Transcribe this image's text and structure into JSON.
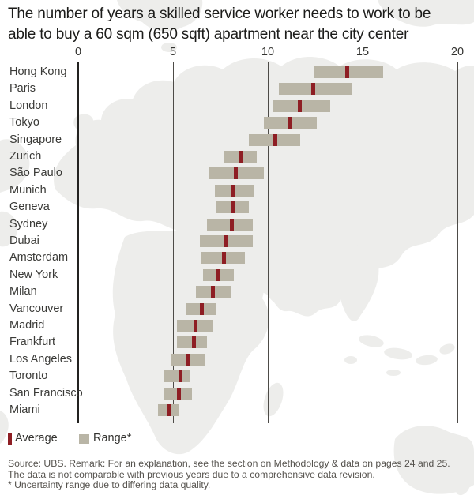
{
  "title": {
    "line1": "The number of years a skilled service worker needs to work to be",
    "line2": "able to buy a 60 sqm (650 sqft) apartment near the city center"
  },
  "legend": {
    "average_label": "Average",
    "range_label": "Range*"
  },
  "footer": {
    "line1": "Source: UBS. Remark: For an explanation, see the section on Methodology & data on pages 24 and 25.",
    "line2": "The data is not comparable with previous years due to a comprehensive data revision.",
    "line3": "* Uncertainty range due to differing data quality."
  },
  "colors": {
    "average": "#8e1e24",
    "range": "#b9b5a6",
    "map": "#ededeb",
    "gridline": "#4d4b47",
    "axis": "#232220"
  },
  "chart_data": {
    "type": "bar",
    "subtype": "horizontal-range-bar-with-average",
    "unit": "years",
    "xlim": [
      0,
      20
    ],
    "x_ticks": [
      0,
      5,
      10,
      15,
      20
    ],
    "legend_position": "bottom-left",
    "grid": "vertical",
    "series_labels": {
      "average": "Average",
      "range": "Range*"
    },
    "cities": [
      {
        "name": "Hong Kong",
        "range_min": 12.4,
        "range_max": 16.1,
        "average": 14.2
      },
      {
        "name": "Paris",
        "range_min": 10.6,
        "range_max": 14.4,
        "average": 12.4
      },
      {
        "name": "London",
        "range_min": 10.3,
        "range_max": 13.3,
        "average": 11.7
      },
      {
        "name": "Tokyo",
        "range_min": 9.8,
        "range_max": 12.6,
        "average": 11.2
      },
      {
        "name": "Singapore",
        "range_min": 9.0,
        "range_max": 11.7,
        "average": 10.4
      },
      {
        "name": "Zurich",
        "range_min": 7.7,
        "range_max": 9.4,
        "average": 8.6
      },
      {
        "name": "São Paulo",
        "range_min": 6.9,
        "range_max": 9.8,
        "average": 8.3
      },
      {
        "name": "Munich",
        "range_min": 7.2,
        "range_max": 9.3,
        "average": 8.2
      },
      {
        "name": "Geneva",
        "range_min": 7.3,
        "range_max": 9.0,
        "average": 8.2
      },
      {
        "name": "Sydney",
        "range_min": 6.8,
        "range_max": 9.2,
        "average": 8.1
      },
      {
        "name": "Dubai",
        "range_min": 6.4,
        "range_max": 9.2,
        "average": 7.8
      },
      {
        "name": "Amsterdam",
        "range_min": 6.5,
        "range_max": 8.8,
        "average": 7.7
      },
      {
        "name": "New York",
        "range_min": 6.6,
        "range_max": 8.2,
        "average": 7.4
      },
      {
        "name": "Milan",
        "range_min": 6.2,
        "range_max": 8.1,
        "average": 7.1
      },
      {
        "name": "Vancouver",
        "range_min": 5.7,
        "range_max": 7.3,
        "average": 6.5
      },
      {
        "name": "Madrid",
        "range_min": 5.2,
        "range_max": 7.1,
        "average": 6.2
      },
      {
        "name": "Frankfurt",
        "range_min": 5.2,
        "range_max": 6.8,
        "average": 6.1
      },
      {
        "name": "Los Angeles",
        "range_min": 4.9,
        "range_max": 6.7,
        "average": 5.8
      },
      {
        "name": "Toronto",
        "range_min": 4.5,
        "range_max": 5.9,
        "average": 5.4
      },
      {
        "name": "San Francisco",
        "range_min": 4.5,
        "range_max": 6.0,
        "average": 5.3
      },
      {
        "name": "Miami",
        "range_min": 4.2,
        "range_max": 5.3,
        "average": 4.8
      }
    ]
  }
}
